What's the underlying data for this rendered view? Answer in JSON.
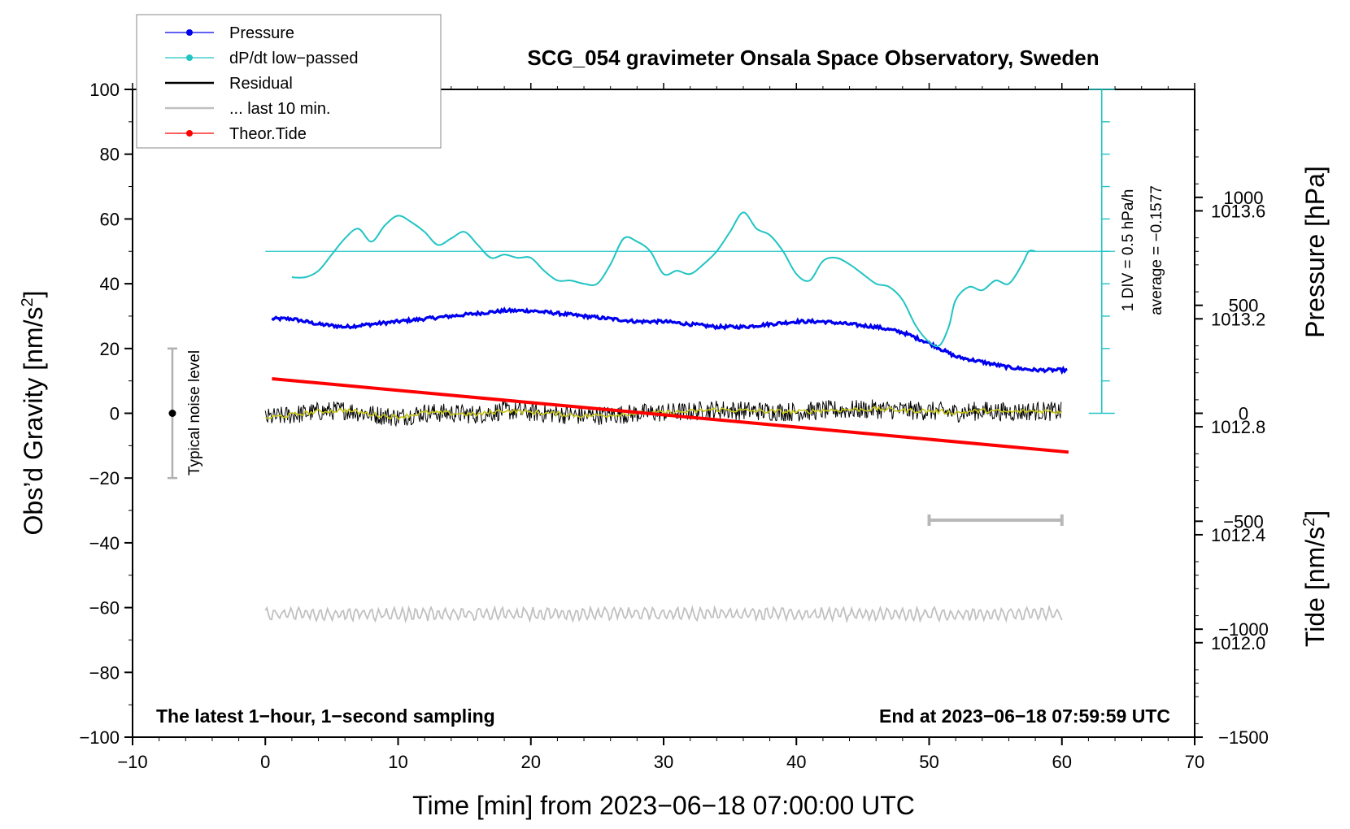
{
  "chart_data": {
    "type": "line",
    "title": "SCG_054 gravimeter Onsala Space Observatory, Sweden",
    "xlabel": "Time [min] from 2023−06−18 07:00:00 UTC",
    "ylabel_left_main": "Obs’d Gravity [nm/s",
    "ylabel_left_sup": "2",
    "ylabel_left_end": "]",
    "ylabel_right_pressure": "Pressure [hPa]",
    "ylabel_right_tide_main": "Tide [nm/s",
    "ylabel_right_tide_sup": "2",
    "ylabel_right_tide_end": "]",
    "xlim": [
      -10,
      70
    ],
    "ylim": [
      -100,
      100
    ],
    "pressure_ylim": [
      1011.65,
      1014.05
    ],
    "tide_ylim": [
      -1500,
      1500
    ],
    "x_ticks": [
      -10,
      0,
      10,
      20,
      30,
      40,
      50,
      60,
      70
    ],
    "x_tick_labels": [
      "−10",
      "0",
      "10",
      "20",
      "30",
      "40",
      "50",
      "60",
      "70"
    ],
    "y_ticks": [
      -100,
      -80,
      -60,
      -40,
      -20,
      0,
      20,
      40,
      60,
      80,
      100
    ],
    "y_tick_labels": [
      "−100",
      "−80",
      "−60",
      "−40",
      "−20",
      "0",
      "20",
      "40",
      "60",
      "80",
      "100"
    ],
    "pressure_ticks": [
      1012.0,
      1012.4,
      1012.8,
      1013.2,
      1013.6
    ],
    "pressure_tick_labels": [
      "1012.0",
      "1012.4",
      "1012.8",
      "1013.2",
      "1013.6"
    ],
    "tide_ticks": [
      -1500,
      -1000,
      -500,
      0,
      500,
      1000
    ],
    "tide_tick_labels": [
      "−1500",
      "−1000",
      "−500",
      "0",
      "500",
      "1000"
    ],
    "legend": [
      {
        "label": "Pressure",
        "color": "#0000ee",
        "marker": true
      },
      {
        "label": "dP/dt low−passed",
        "color": "#22c4c4",
        "marker": true
      },
      {
        "label": "Residual",
        "color": "#000000",
        "marker": false
      },
      {
        "label": "... last 10 min.",
        "color": "#c0c0c0",
        "marker": false
      },
      {
        "label": "Theor.Tide",
        "color": "#ff0000",
        "marker": true
      }
    ],
    "legend_position": "top-left",
    "annotations": {
      "bottom_left": "The latest 1−hour, 1−second sampling",
      "bottom_right": "End at 2023−06−18 07:59:59 UTC",
      "noise_label": "Typical noise level",
      "dpdt_scale": "1 DIV = 0.5 hPa/h",
      "dpdt_average": "average = −0.1577"
    },
    "noise_bar": {
      "x": -7,
      "center": 0,
      "low": -20,
      "high": 20
    },
    "window_bar": {
      "x_start": 50,
      "x_end": 60,
      "gravity_y": -33
    },
    "dpdt_scale_bar": {
      "x": 63,
      "y_bottom": 0,
      "y_top": 100,
      "divisions": 10
    },
    "series": [
      {
        "name": "Pressure",
        "axis": "pressure",
        "color": "#0000ee",
        "x": [
          0.5,
          2,
          4,
          6,
          8,
          10,
          12,
          14,
          16,
          18,
          20,
          22,
          24,
          26,
          28,
          30,
          32,
          34,
          36,
          38,
          40,
          42,
          44,
          46,
          48,
          50,
          52,
          54,
          56,
          58,
          60,
          60.5
        ],
        "y": [
          1013.2,
          1013.2,
          1013.18,
          1013.17,
          1013.18,
          1013.19,
          1013.2,
          1013.21,
          1013.22,
          1013.23,
          1013.23,
          1013.22,
          1013.21,
          1013.2,
          1013.19,
          1013.19,
          1013.18,
          1013.17,
          1013.17,
          1013.18,
          1013.19,
          1013.19,
          1013.18,
          1013.17,
          1013.15,
          1013.11,
          1013.06,
          1013.04,
          1013.02,
          1013.01,
          1013.01,
          1013.01
        ]
      },
      {
        "name": "dP/dt low−passed",
        "axis": "gravity",
        "color": "#22c4c4",
        "x": [
          2,
          3,
          4,
          5,
          6,
          7,
          8,
          9,
          10,
          11,
          12,
          13,
          14,
          15,
          16,
          17,
          18,
          19,
          20,
          21,
          22,
          23,
          24,
          25,
          26,
          27,
          28,
          29,
          30,
          31,
          32,
          33,
          34,
          35,
          36,
          37,
          38,
          39,
          40,
          41,
          42,
          43,
          44,
          45,
          46,
          47,
          48,
          49,
          50,
          50.8,
          51.5,
          52,
          53,
          54,
          55,
          56,
          57,
          57.5,
          58
        ],
        "y": [
          42,
          42,
          44,
          49,
          54,
          57,
          53,
          58,
          61,
          59,
          56,
          52,
          54,
          56,
          52,
          48,
          49,
          48,
          48,
          44,
          41,
          41,
          40,
          40,
          46,
          54,
          53,
          50,
          43,
          44,
          43,
          46,
          50,
          56,
          62,
          57,
          55,
          50,
          43,
          41,
          47,
          48,
          46,
          43,
          40,
          39,
          35,
          27,
          22,
          21,
          27,
          35,
          39,
          38,
          41,
          40,
          46,
          50,
          50
        ]
      },
      {
        "name": "dP/dt average",
        "axis": "gravity",
        "color": "#22c4c4",
        "x": [
          0,
          64
        ],
        "y": [
          50,
          50
        ]
      },
      {
        "name": "Residual",
        "axis": "gravity",
        "color": "#000000",
        "x": [
          0,
          2,
          4,
          6,
          8,
          10,
          12,
          14,
          16,
          18,
          20,
          22,
          24,
          26,
          28,
          30,
          32,
          34,
          36,
          38,
          40,
          42,
          44,
          46,
          48,
          50,
          52,
          54,
          56,
          58,
          60
        ],
        "y": [
          -1.5,
          -0.5,
          0.5,
          1.0,
          -0.3,
          -1.2,
          0.2,
          0.0,
          -0.4,
          0.9,
          0.3,
          -0.2,
          -0.8,
          -0.5,
          0.0,
          0.2,
          0.5,
          1.2,
          0.8,
          0.6,
          0.4,
          0.9,
          1.1,
          1.3,
          0.9,
          0.7,
          0.2,
          0.8,
          0.4,
          0.7,
          0.5
        ]
      },
      {
        "name": "Residual smoothed",
        "axis": "gravity",
        "color": "#c8c818",
        "x": [
          0,
          2,
          4,
          6,
          8,
          10,
          12,
          14,
          16,
          18,
          20,
          22,
          24,
          26,
          28,
          30,
          32,
          34,
          36,
          38,
          40,
          42,
          44,
          46,
          48,
          50,
          52,
          54,
          56,
          58,
          60
        ],
        "y": [
          -1.5,
          -0.5,
          0.5,
          1.0,
          -0.3,
          -1.2,
          0.2,
          0.0,
          -0.4,
          0.9,
          0.3,
          -0.2,
          -0.8,
          -0.5,
          0.0,
          0.2,
          0.5,
          1.2,
          0.8,
          0.6,
          0.4,
          0.9,
          1.1,
          1.3,
          0.9,
          0.7,
          0.2,
          0.8,
          0.4,
          0.7,
          0.5
        ]
      },
      {
        "name": "... last 10 min.",
        "axis": "gravity",
        "color": "#c0c0c0",
        "x": [
          0,
          60
        ],
        "y": [
          -62,
          -62
        ]
      },
      {
        "name": "Theor.Tide",
        "axis": "tide",
        "color": "#ff0000",
        "x": [
          0.5,
          60.5
        ],
        "y": [
          160,
          -180
        ]
      }
    ]
  }
}
